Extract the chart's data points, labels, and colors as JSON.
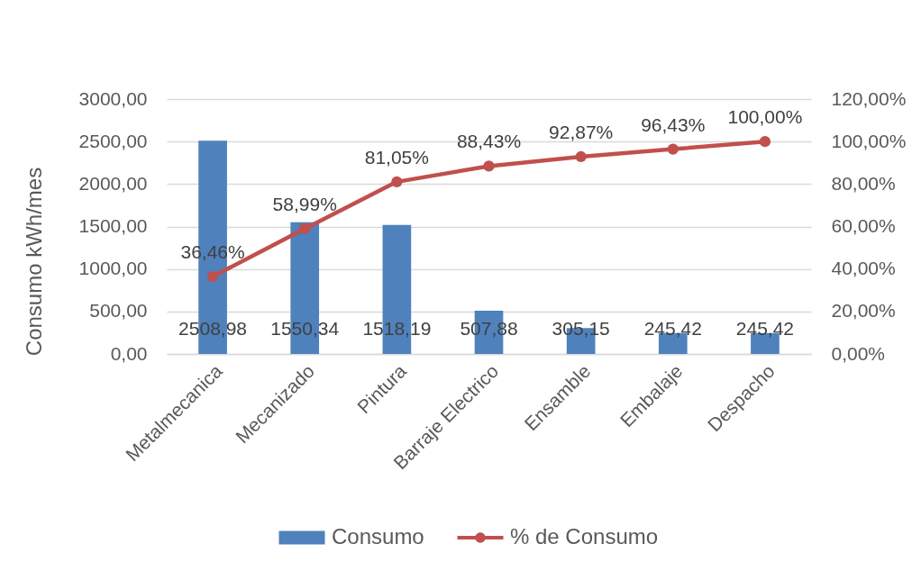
{
  "chart_data": {
    "type": "bar",
    "categories": [
      "Metalmecanica",
      "Mecanizado",
      "Pintura",
      "Barraje Electrico",
      "Ensamble",
      "Embalaje",
      "Despacho"
    ],
    "ylabel": "Consumo kWh/mes",
    "ylim": [
      0,
      3000
    ],
    "yticks": [
      {
        "value": 0,
        "label": "0,00"
      },
      {
        "value": 500,
        "label": "500,00"
      },
      {
        "value": 1000,
        "label": "1000,00"
      },
      {
        "value": 1500,
        "label": "1500,00"
      },
      {
        "value": 2000,
        "label": "2000,00"
      },
      {
        "value": 2500,
        "label": "2500,00"
      },
      {
        "value": 3000,
        "label": "3000,00"
      }
    ],
    "y2lim": [
      0,
      120
    ],
    "y2ticks": [
      {
        "value": 0,
        "label": "0,00%"
      },
      {
        "value": 20,
        "label": "20,00%"
      },
      {
        "value": 40,
        "label": "40,00%"
      },
      {
        "value": 60,
        "label": "60,00%"
      },
      {
        "value": 80,
        "label": "80,00%"
      },
      {
        "value": 100,
        "label": "100,00%"
      },
      {
        "value": 120,
        "label": "120,00%"
      }
    ],
    "grid": "y",
    "legend": "bottom",
    "marker": "circle",
    "series": [
      {
        "name": "Consumo",
        "color": "#4f81bd",
        "values": [
          2508.98,
          1550.34,
          1518.19,
          507.88,
          305.15,
          245.42,
          245.42
        ],
        "value_labels": [
          "2508,98",
          "1550,34",
          "1518,19",
          "507,88",
          "305,15",
          "245,42",
          "245,42"
        ]
      },
      {
        "name": "% de Consumo",
        "type": "line",
        "axis": "y2",
        "color": "#c0504d",
        "values": [
          36.46,
          58.99,
          81.05,
          88.43,
          92.87,
          96.43,
          100
        ],
        "value_labels": [
          "36,46%",
          "58,99%",
          "81,05%",
          "88,43%",
          "92,87%",
          "96,43%",
          "100,00%"
        ]
      }
    ]
  }
}
